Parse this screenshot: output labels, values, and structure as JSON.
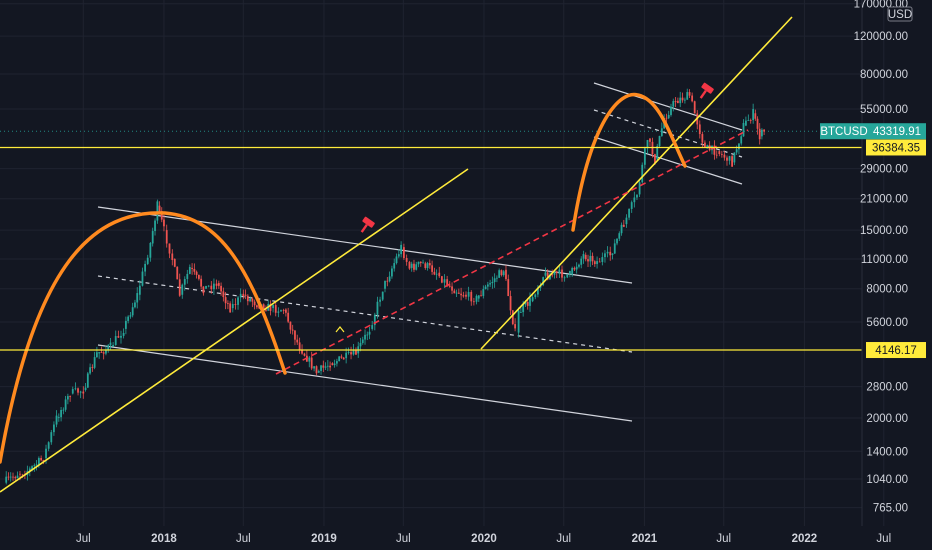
{
  "chart_data": {
    "type": "line",
    "symbol": "BTCUSD",
    "last_price": "43319.91",
    "currency": "USD",
    "scale": "log",
    "ylim": [
      700,
      175000
    ],
    "x_range": [
      "2016-12-23",
      "2022-10-19"
    ],
    "y_ticks": [
      "765.00",
      "1040.00",
      "1400.00",
      "2000.00",
      "2800.00",
      "4146.17",
      "5600.00",
      "8000.00",
      "11000.00",
      "15000.00",
      "21000.00",
      "29000.00",
      "36384.35",
      "55000.00",
      "80000.00",
      "120000.00",
      "170000.00"
    ],
    "x_ticks": [
      {
        "label": "Jul",
        "date": "2017-07-01",
        "major": false
      },
      {
        "label": "2018",
        "date": "2018-01-01",
        "major": true
      },
      {
        "label": "Jul",
        "date": "2018-07-01",
        "major": false
      },
      {
        "label": "2019",
        "date": "2019-01-01",
        "major": true
      },
      {
        "label": "Jul",
        "date": "2019-07-01",
        "major": false
      },
      {
        "label": "2020",
        "date": "2020-01-01",
        "major": true
      },
      {
        "label": "Jul",
        "date": "2020-07-01",
        "major": false
      },
      {
        "label": "2021",
        "date": "2021-01-01",
        "major": true
      },
      {
        "label": "Jul",
        "date": "2021-07-01",
        "major": false
      },
      {
        "label": "2022",
        "date": "2022-01-01",
        "major": true
      },
      {
        "label": "Jul",
        "date": "2022-07-01",
        "major": false
      }
    ],
    "price_series": {
      "dates": [
        "2017-01-01",
        "2017-02-01",
        "2017-03-01",
        "2017-04-01",
        "2017-05-01",
        "2017-06-01",
        "2017-07-01",
        "2017-08-01",
        "2017-09-01",
        "2017-10-01",
        "2017-11-01",
        "2017-12-01",
        "2017-12-17",
        "2018-01-01",
        "2018-01-20",
        "2018-02-06",
        "2018-03-01",
        "2018-04-01",
        "2018-05-01",
        "2018-06-01",
        "2018-07-01",
        "2018-08-01",
        "2018-09-01",
        "2018-10-01",
        "2018-11-01",
        "2018-12-15",
        "2019-01-15",
        "2019-02-15",
        "2019-03-15",
        "2019-04-15",
        "2019-05-15",
        "2019-06-26",
        "2019-07-15",
        "2019-08-15",
        "2019-09-15",
        "2019-10-15",
        "2019-11-15",
        "2019-12-15",
        "2020-01-15",
        "2020-02-15",
        "2020-03-12",
        "2020-03-20",
        "2020-04-15",
        "2020-05-15",
        "2020-06-15",
        "2020-07-15",
        "2020-08-15",
        "2020-09-15",
        "2020-10-15",
        "2020-11-15",
        "2020-12-15",
        "2021-01-08",
        "2021-01-25",
        "2021-02-15",
        "2021-03-13",
        "2021-04-14",
        "2021-05-19",
        "2021-06-15",
        "2021-07-20",
        "2021-08-15",
        "2021-09-06",
        "2021-09-21",
        "2021-10-01"
      ],
      "close": [
        1000,
        1100,
        1150,
        1300,
        2000,
        2600,
        2700,
        4000,
        4300,
        5200,
        7500,
        13000,
        19500,
        15000,
        11000,
        7500,
        10000,
        8000,
        8500,
        6500,
        7500,
        6800,
        6500,
        6400,
        4500,
        3250,
        3600,
        3800,
        4000,
        5200,
        8000,
        12500,
        10000,
        10500,
        9500,
        8200,
        7500,
        7200,
        8500,
        9800,
        5000,
        6200,
        7000,
        9200,
        9400,
        9300,
        11500,
        10700,
        11500,
        16000,
        22000,
        40000,
        32000,
        50000,
        60000,
        63500,
        36000,
        35000,
        31000,
        46000,
        52500,
        41000,
        43320
      ]
    },
    "horizontal_levels": [
      {
        "price": 36384.35,
        "label": "36384.35",
        "color": "#ffeb3b"
      },
      {
        "price": 4146.17,
        "label": "4146.17",
        "color": "#ffeb3b"
      }
    ],
    "price_badges": [
      {
        "symbol": "BTCUSD",
        "value": "43319.91",
        "color": "#26a69a"
      },
      {
        "value": "36384.35",
        "color": "#ffeb3b"
      },
      {
        "value": "4146.17",
        "color": "#ffeb3b"
      }
    ],
    "colors": {
      "background": "#131722",
      "price": "#26a69a",
      "trendline": "#ffeb3b",
      "channel": "#d1d4dc",
      "arc": "#ff8a1f",
      "red_dashed": "#f23645",
      "marker": "#f23645"
    }
  }
}
